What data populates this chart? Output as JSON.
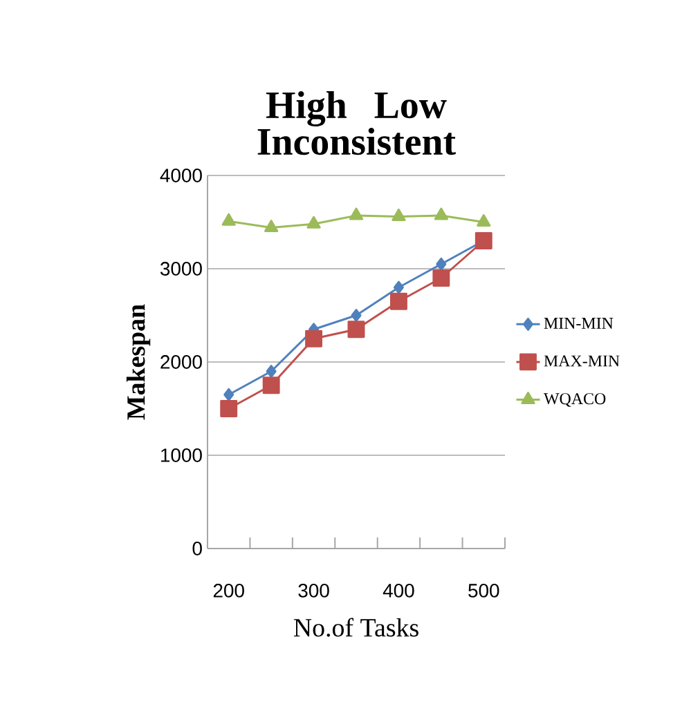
{
  "chart_data": {
    "type": "line",
    "title": "High Low Inconsistent",
    "xlabel": "No.of Tasks",
    "ylabel": "Makespan",
    "categories": [
      "200",
      null,
      "300",
      null,
      "400",
      null,
      "500"
    ],
    "series": [
      {
        "name": "MIN-MIN",
        "color": "#4f81bd",
        "marker": "diamond",
        "values": [
          1650,
          1900,
          2350,
          2500,
          2800,
          3050,
          3300
        ]
      },
      {
        "name": "MAX-MIN",
        "color": "#c0504d",
        "marker": "square",
        "values": [
          1500,
          1750,
          2250,
          2350,
          2650,
          2900,
          3300
        ]
      },
      {
        "name": "WQACO",
        "color": "#9bbb59",
        "marker": "triangle",
        "values": [
          3510,
          3440,
          3480,
          3570,
          3560,
          3570,
          3500
        ]
      }
    ],
    "ylim": [
      0,
      4000
    ],
    "yticks": [
      0,
      1000,
      2000,
      3000,
      4000
    ],
    "grid": "y",
    "legend": "right"
  }
}
